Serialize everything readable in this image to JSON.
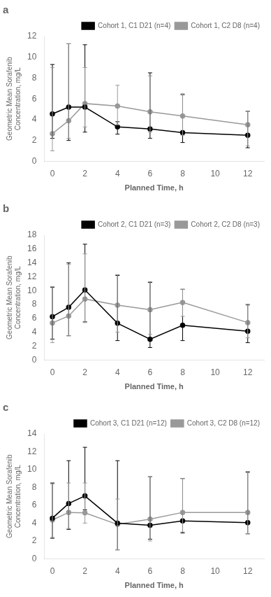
{
  "chart_data": [
    {
      "type": "line",
      "title": "a",
      "xlabel": "Planned Time, h",
      "ylabel": "Geometric Mean Sorafenib\nConcentration, mg/L",
      "x": [
        0,
        1,
        2,
        4,
        6,
        8,
        12
      ],
      "xlim": [
        -0.5,
        13.0
      ],
      "xticks": [
        0,
        2,
        4,
        6,
        8,
        10,
        12
      ],
      "ylim": [
        0,
        12
      ],
      "yticks": [
        0,
        2,
        4,
        6,
        8,
        10,
        12
      ],
      "grid": false,
      "legend": "upper right",
      "series": [
        {
          "name": "Cohort 1, C1 D21 (n=4)",
          "color": "#000000",
          "marker": "circle",
          "values": [
            4.55,
            5.2,
            5.2,
            3.3,
            3.1,
            2.75,
            2.5
          ],
          "lower": [
            2.2,
            2.0,
            2.8,
            2.6,
            2.2,
            1.8,
            1.3
          ],
          "upper": [
            9.3,
            11.3,
            11.2,
            3.8,
            8.5,
            6.4,
            4.8
          ]
        },
        {
          "name": "Cohort 1, C2 D8 (n=4)",
          "color": "#999999",
          "marker": "circle",
          "values": [
            2.65,
            3.9,
            5.55,
            5.3,
            4.75,
            4.35,
            3.5
          ],
          "lower": [
            1.0,
            2.2,
            3.3,
            3.5,
            2.8,
            2.5,
            1.5
          ],
          "upper": [
            9.0,
            11.3,
            9.0,
            7.3,
            8.2,
            6.5,
            4.8
          ]
        }
      ]
    },
    {
      "type": "line",
      "title": "b",
      "xlabel": "Planned Time, h",
      "ylabel": "Geometric Mean Sorafenib\nConcentration, mg/L",
      "x": [
        0,
        1,
        2,
        4,
        6,
        8,
        12
      ],
      "xlim": [
        -0.5,
        13.0
      ],
      "xticks": [
        0,
        2,
        4,
        6,
        8,
        10,
        12
      ],
      "ylim": [
        0,
        18
      ],
      "yticks": [
        0,
        2,
        4,
        6,
        8,
        10,
        12,
        14,
        16,
        18
      ],
      "grid": false,
      "legend": "upper right",
      "series": [
        {
          "name": "Cohort 2, C1 D21 (n=3)",
          "color": "#000000",
          "marker": "circle",
          "values": [
            6.25,
            7.6,
            10.1,
            5.3,
            3.0,
            5.0,
            4.15
          ],
          "lower": [
            3.0,
            3.5,
            5.5,
            2.8,
            1.8,
            2.8,
            2.5
          ],
          "upper": [
            10.5,
            14.0,
            16.7,
            12.2,
            11.2,
            10.2,
            8.0
          ]
        },
        {
          "name": "Cohort 2, C2 D8 (n=3)",
          "color": "#999999",
          "marker": "circle",
          "values": [
            5.35,
            6.35,
            8.8,
            7.9,
            7.25,
            8.3,
            5.4
          ],
          "lower": [
            2.5,
            3.5,
            5.4,
            4.0,
            3.7,
            6.3,
            3.2
          ],
          "upper": [
            10.6,
            13.8,
            15.3,
            12.3,
            11.3,
            10.2,
            7.9
          ]
        }
      ]
    },
    {
      "type": "line",
      "title": "c",
      "xlabel": "Planned Time, h",
      "ylabel": "Geometric Mean Sorafenib\nConcentration, mg/L",
      "x": [
        0,
        1,
        2,
        4,
        6,
        8,
        12
      ],
      "xlim": [
        -0.5,
        13.0
      ],
      "xticks": [
        0,
        2,
        4,
        6,
        8,
        10,
        12
      ],
      "ylim": [
        0,
        14
      ],
      "yticks": [
        0,
        2,
        4,
        6,
        8,
        10,
        12,
        14
      ],
      "grid": false,
      "legend": "upper right",
      "series": [
        {
          "name": "Cohort 3, C1 D21 (n=12)",
          "color": "#000000",
          "marker": "circle",
          "values": [
            4.55,
            6.2,
            7.05,
            4.0,
            3.75,
            4.25,
            4.05
          ],
          "lower": [
            2.3,
            3.3,
            5.5,
            1.0,
            2.2,
            2.9,
            2.8
          ],
          "upper": [
            8.5,
            11.0,
            12.5,
            11.0,
            9.2,
            9.0,
            9.7
          ]
        },
        {
          "name": "Cohort 3, C2 D8 (n=12)",
          "color": "#999999",
          "marker": "circle",
          "values": [
            4.35,
            5.2,
            5.15,
            3.85,
            4.45,
            5.2,
            5.2
          ],
          "lower": [
            2.4,
            3.4,
            4.0,
            1.0,
            2.0,
            3.0,
            2.8
          ],
          "upper": [
            8.4,
            8.5,
            8.5,
            6.7,
            9.2,
            9.0,
            9.8
          ]
        }
      ]
    }
  ]
}
